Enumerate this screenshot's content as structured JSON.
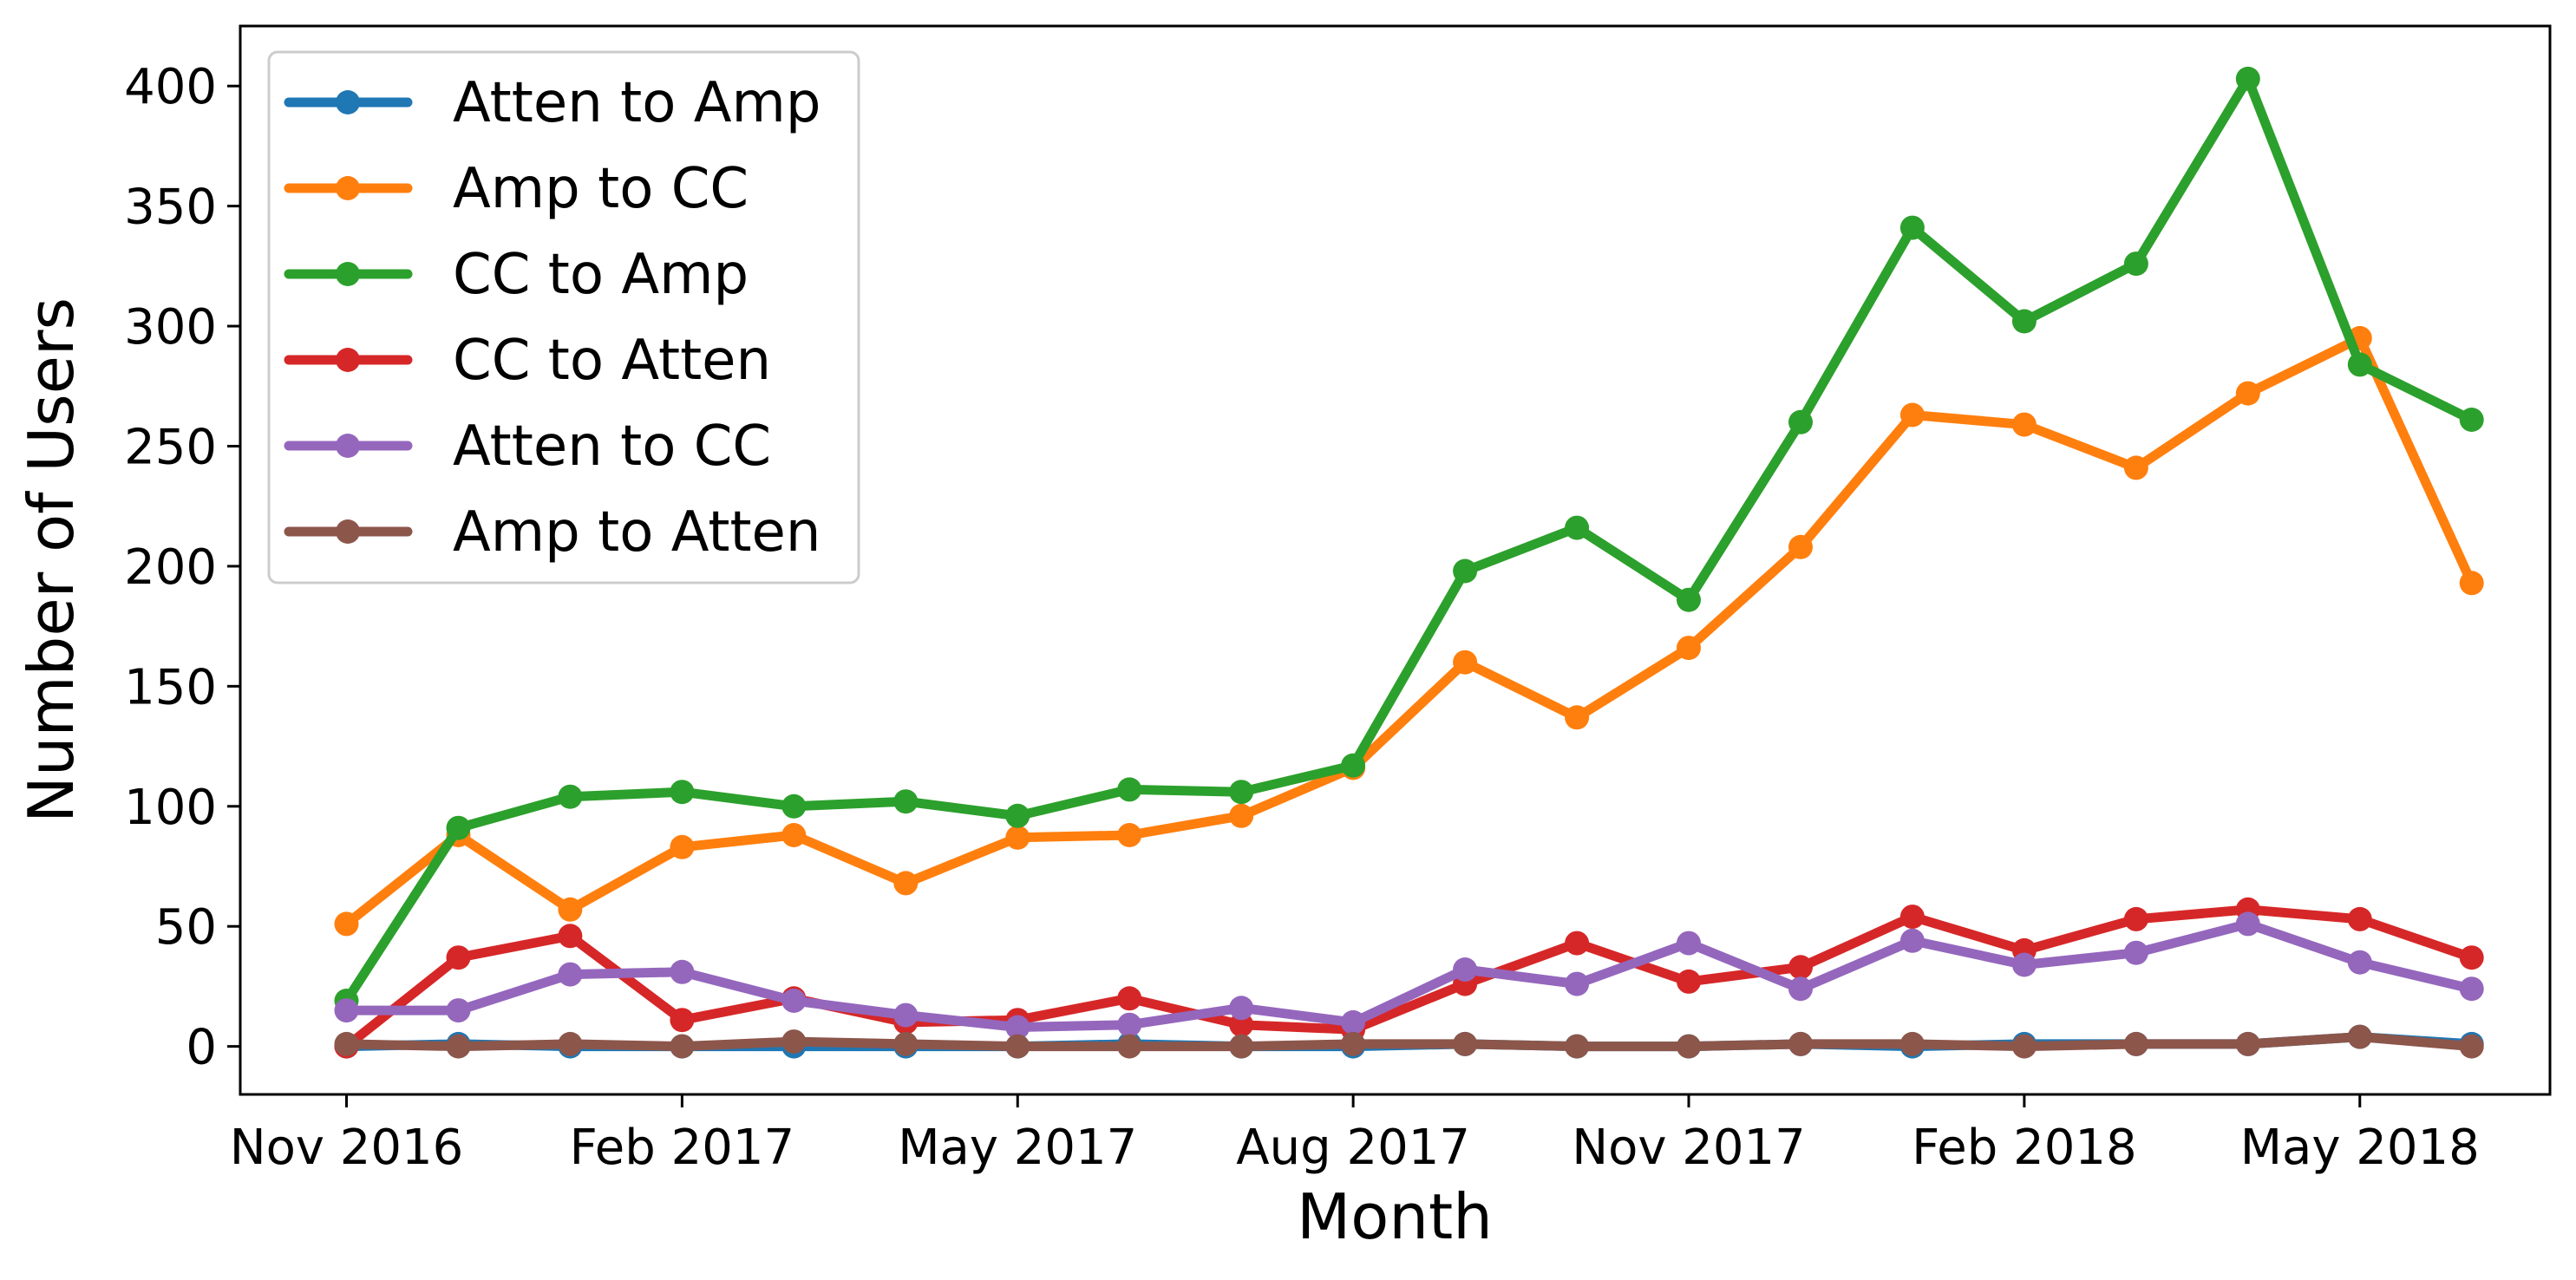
{
  "chart_data": {
    "type": "line",
    "title": "",
    "xlabel": "Month",
    "ylabel": "Number of Users",
    "x": [
      "2016-11",
      "2016-12",
      "2017-01",
      "2017-02",
      "2017-03",
      "2017-04",
      "2017-05",
      "2017-06",
      "2017-07",
      "2017-08",
      "2017-09",
      "2017-10",
      "2017-11",
      "2017-12",
      "2018-01",
      "2018-02",
      "2018-03",
      "2018-04",
      "2018-05",
      "2018-06"
    ],
    "xticks": [
      {
        "index": 0,
        "label": "Nov 2016"
      },
      {
        "index": 3,
        "label": "Feb 2017"
      },
      {
        "index": 6,
        "label": "May 2017"
      },
      {
        "index": 9,
        "label": "Aug 2017"
      },
      {
        "index": 12,
        "label": "Nov 2017"
      },
      {
        "index": 15,
        "label": "Feb 2018"
      },
      {
        "index": 18,
        "label": "May 2018"
      }
    ],
    "xlim": [
      -0.95,
      19.7
    ],
    "ylim": [
      -20,
      425
    ],
    "yticks": [
      0,
      50,
      100,
      150,
      200,
      250,
      300,
      350,
      400
    ],
    "grid": false,
    "legend_position": "top-left",
    "series": [
      {
        "name": "Atten to Amp",
        "color": "#1f77b4",
        "values": [
          0,
          1,
          0,
          0,
          0,
          0,
          0,
          1,
          0,
          0,
          1,
          0,
          0,
          1,
          0,
          1,
          1,
          1,
          4,
          1
        ]
      },
      {
        "name": "Amp to CC",
        "color": "#ff7f0e",
        "values": [
          51,
          88,
          57,
          83,
          88,
          68,
          87,
          88,
          96,
          116,
          160,
          137,
          166,
          208,
          263,
          259,
          241,
          272,
          295,
          193
        ]
      },
      {
        "name": "CC to Amp",
        "color": "#2ca02c",
        "values": [
          19,
          91,
          104,
          106,
          100,
          102,
          96,
          107,
          106,
          117,
          198,
          216,
          186,
          260,
          341,
          302,
          326,
          403,
          284,
          261
        ]
      },
      {
        "name": "CC to Atten",
        "color": "#d62728",
        "values": [
          0,
          37,
          46,
          11,
          20,
          10,
          11,
          20,
          9,
          7,
          26,
          43,
          27,
          33,
          54,
          40,
          53,
          57,
          53,
          37
        ]
      },
      {
        "name": "Atten to CC",
        "color": "#9467bd",
        "values": [
          15,
          15,
          30,
          31,
          19,
          13,
          8,
          9,
          16,
          10,
          32,
          26,
          43,
          24,
          44,
          34,
          39,
          51,
          35,
          24
        ]
      },
      {
        "name": "Amp to Atten",
        "color": "#8c564b",
        "values": [
          1,
          0,
          1,
          0,
          2,
          1,
          0,
          0,
          0,
          1,
          1,
          0,
          0,
          1,
          1,
          0,
          1,
          1,
          4,
          0
        ]
      }
    ]
  }
}
